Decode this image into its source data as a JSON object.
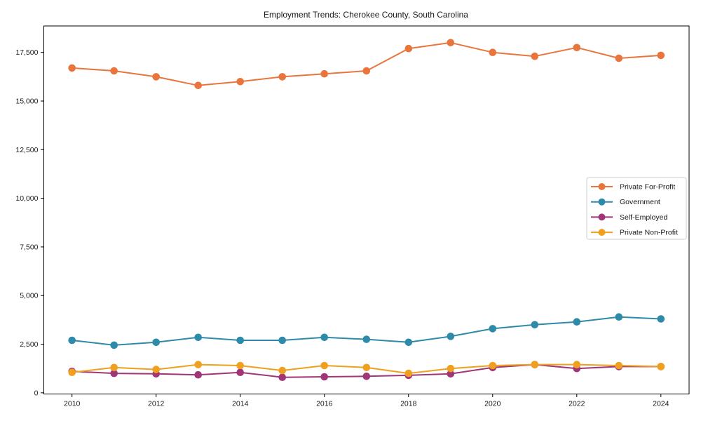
{
  "chart_data": {
    "type": "line",
    "title": "Employment Trends: Cherokee County, South Carolina",
    "xlabel": "",
    "ylabel": "",
    "grid": false,
    "legend_position": "center right",
    "x": [
      2010,
      2011,
      2012,
      2013,
      2014,
      2015,
      2016,
      2017,
      2018,
      2019,
      2020,
      2021,
      2022,
      2023,
      2024
    ],
    "x_tick_years": [
      2010,
      2012,
      2014,
      2016,
      2018,
      2020,
      2022,
      2024
    ],
    "x_tick_labels": [
      "2010",
      "2012",
      "2014",
      "2016",
      "2018",
      "2020",
      "2022",
      "2024"
    ],
    "y_tick_values": [
      0,
      2500,
      5000,
      7500,
      10000,
      12500,
      15000,
      17500
    ],
    "y_tick_labels": [
      "0",
      "2,500",
      "5,000",
      "7,500",
      "10,000",
      "12,500",
      "15,000",
      "17,500"
    ],
    "xlim": [
      2009.33,
      2024.67
    ],
    "ylim": [
      -60,
      18860
    ],
    "series": [
      {
        "name": "Private For-Profit",
        "color": "#e8763c",
        "values": [
          16700,
          16550,
          16250,
          15800,
          16000,
          16250,
          16400,
          16550,
          17700,
          18000,
          17500,
          17300,
          17750,
          17200,
          17350
        ]
      },
      {
        "name": "Government",
        "color": "#2e8aa9",
        "values": [
          2700,
          2450,
          2600,
          2850,
          2700,
          2700,
          2850,
          2750,
          2600,
          2900,
          3300,
          3500,
          3650,
          3900,
          3800
        ]
      },
      {
        "name": "Self-Employed",
        "color": "#a03577",
        "values": [
          1100,
          1000,
          975,
          925,
          1050,
          800,
          825,
          850,
          900,
          975,
          1300,
          1450,
          1250,
          1350,
          1350
        ]
      },
      {
        "name": "Private Non-Profit",
        "color": "#efa01e",
        "values": [
          1050,
          1300,
          1200,
          1450,
          1400,
          1150,
          1400,
          1300,
          1000,
          1250,
          1400,
          1450,
          1450,
          1400,
          1350
        ]
      }
    ]
  }
}
